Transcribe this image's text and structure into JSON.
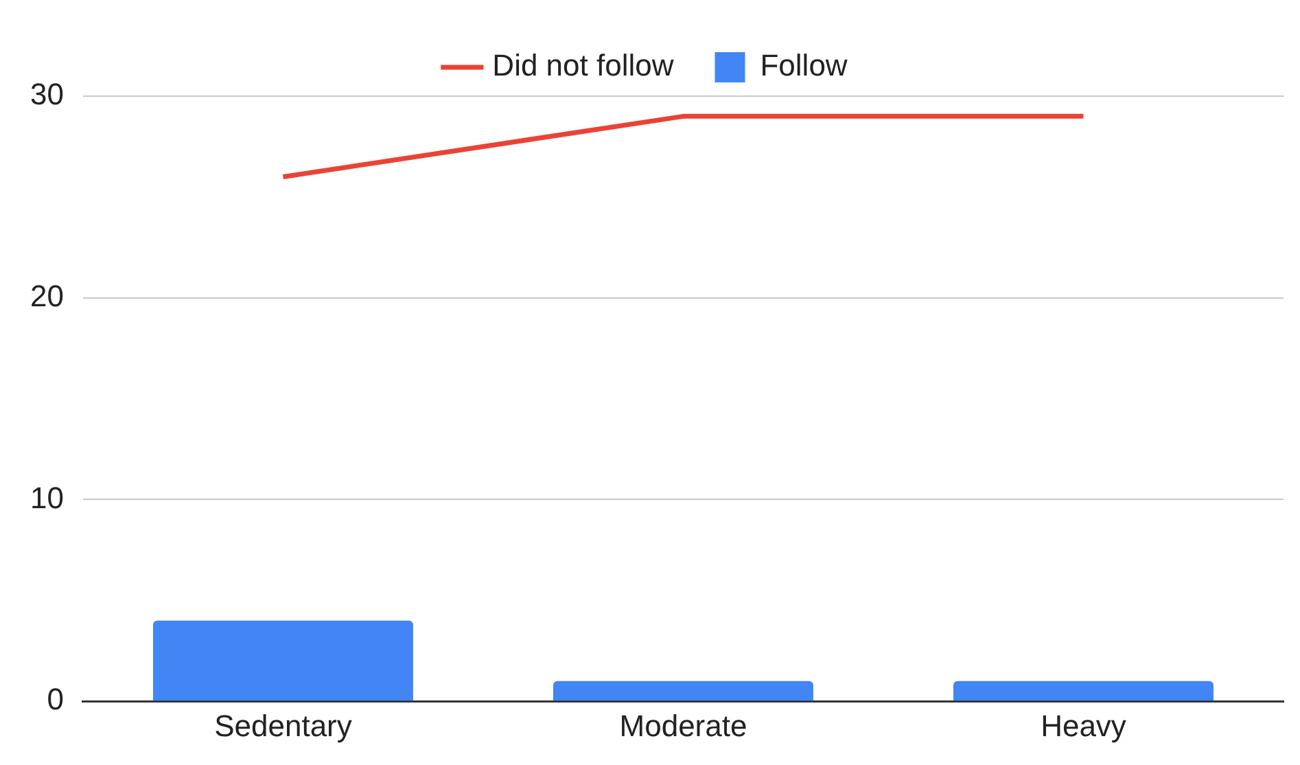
{
  "chart_data": {
    "type": "bar",
    "categories": [
      "Sedentary",
      "Moderate",
      "Heavy"
    ],
    "series": [
      {
        "name": "Follow",
        "color": "#4285f4",
        "values": [
          4,
          1,
          1
        ]
      },
      {
        "name": "Did not follow",
        "type": "line",
        "color": "#ea4335",
        "values": [
          26,
          29,
          29
        ]
      }
    ],
    "ylim": [
      0,
      30
    ],
    "yticks": [
      0,
      10,
      20,
      30
    ],
    "grid": "y",
    "legend": "top",
    "marker": "none"
  }
}
